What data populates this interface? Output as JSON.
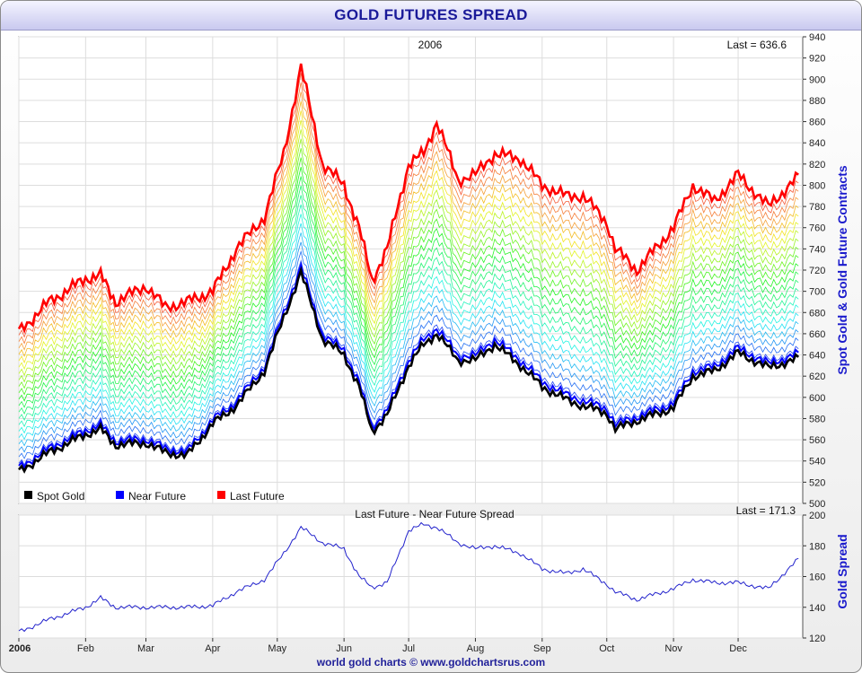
{
  "header": {
    "title": "GOLD FUTURES SPREAD"
  },
  "footer": {
    "credit": "world gold charts © www.goldchartsrus.com"
  },
  "colors": {
    "spot": "#000000",
    "near": "#0000ff",
    "last": "#ff0000",
    "spread": "#1a1acc",
    "grid": "#dddddd"
  },
  "chart_data": [
    {
      "type": "line",
      "title": "2006",
      "last_label": "Last = 636.6",
      "ylabel": "Spot Gold & Gold Future Contracts",
      "ylim": [
        500,
        940
      ],
      "yticks": [
        "500",
        "520",
        "540",
        "560",
        "580",
        "600",
        "620",
        "640",
        "660",
        "680",
        "700",
        "720",
        "740",
        "760",
        "780",
        "800",
        "820",
        "840",
        "860",
        "880",
        "900",
        "920",
        "940"
      ],
      "legend": [
        {
          "name": "Spot Gold",
          "color": "#000000"
        },
        {
          "name": "Near Future",
          "color": "#0000ff"
        },
        {
          "name": "Last Future",
          "color": "#ff0000"
        }
      ],
      "legend_position": "bottom-left",
      "contracts": 22,
      "x": [
        "2006-01-01",
        "2006-01-15",
        "2006-02-01",
        "2006-02-08",
        "2006-02-15",
        "2006-03-01",
        "2006-03-10",
        "2006-03-20",
        "2006-04-01",
        "2006-04-12",
        "2006-04-25",
        "2006-05-04",
        "2006-05-12",
        "2006-05-22",
        "2006-06-01",
        "2006-06-08",
        "2006-06-14",
        "2006-06-21",
        "2006-07-01",
        "2006-07-08",
        "2006-07-14",
        "2006-07-24",
        "2006-08-01",
        "2006-08-10",
        "2006-08-22",
        "2006-09-01",
        "2006-09-12",
        "2006-09-20",
        "2006-10-01",
        "2006-10-05",
        "2006-10-15",
        "2006-11-01",
        "2006-11-10",
        "2006-11-20",
        "2006-12-01",
        "2006-12-15",
        "2006-12-29"
      ],
      "series": [
        {
          "name": "Spot Gold",
          "values": [
            530,
            548,
            565,
            570,
            555,
            557,
            548,
            545,
            575,
            592,
            625,
            675,
            718,
            655,
            640,
            610,
            568,
            583,
            630,
            650,
            660,
            635,
            635,
            650,
            630,
            610,
            598,
            592,
            585,
            570,
            578,
            590,
            620,
            625,
            642,
            628,
            636.6
          ]
        },
        {
          "name": "Last Future",
          "values": [
            662,
            690,
            712,
            715,
            690,
            705,
            685,
            690,
            700,
            740,
            770,
            830,
            912,
            820,
            800,
            760,
            710,
            740,
            820,
            830,
            860,
            805,
            810,
            830,
            825,
            800,
            790,
            790,
            765,
            740,
            720,
            760,
            800,
            785,
            810,
            780,
            808
          ]
        }
      ]
    },
    {
      "type": "line",
      "title": "Last Future - Near Future Spread",
      "last_label": "Last = 171.3",
      "ylabel": "Gold Spread",
      "ylim": [
        120,
        200
      ],
      "yticks": [
        "120",
        "140",
        "160",
        "180",
        "200"
      ],
      "x_month_ticks": [
        "2006",
        "Feb",
        "Mar",
        "Apr",
        "May",
        "Jun",
        "Jul",
        "Aug",
        "Sep",
        "Oct",
        "Nov",
        "Dec"
      ],
      "x": [
        "2006-01-01",
        "2006-01-15",
        "2006-02-01",
        "2006-02-08",
        "2006-02-15",
        "2006-03-01",
        "2006-03-10",
        "2006-03-20",
        "2006-04-01",
        "2006-04-12",
        "2006-04-25",
        "2006-05-04",
        "2006-05-12",
        "2006-05-22",
        "2006-06-01",
        "2006-06-08",
        "2006-06-14",
        "2006-06-21",
        "2006-07-01",
        "2006-07-08",
        "2006-07-14",
        "2006-07-24",
        "2006-08-01",
        "2006-08-10",
        "2006-08-22",
        "2006-09-01",
        "2006-09-12",
        "2006-09-20",
        "2006-10-01",
        "2006-10-05",
        "2006-10-15",
        "2006-11-01",
        "2006-11-10",
        "2006-11-20",
        "2006-12-01",
        "2006-12-15",
        "2006-12-29"
      ],
      "series": [
        {
          "name": "Spread",
          "values": [
            124,
            132,
            140,
            146,
            140,
            140,
            140,
            140,
            141,
            150,
            158,
            175,
            192,
            182,
            178,
            160,
            153,
            156,
            190,
            194,
            192,
            182,
            178,
            180,
            175,
            165,
            162,
            165,
            155,
            150,
            145,
            152,
            158,
            156,
            156,
            152,
            171.3
          ]
        }
      ]
    }
  ]
}
